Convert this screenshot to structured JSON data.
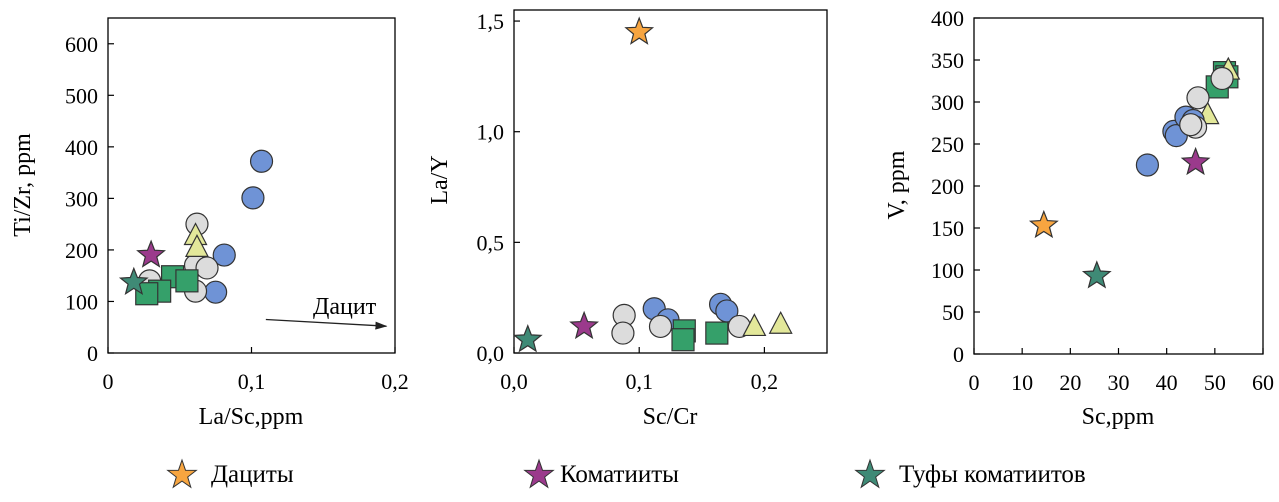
{
  "legend": {
    "dacites": "Дациты",
    "komatiites": "Коматииты",
    "komatiite_tuffs": "Туфы коматиитов"
  },
  "colors": {
    "dacite_star": "#f7a540",
    "komatiite_star": "#9b3a8c",
    "tuff_star": "#3f8a76",
    "blue_circle": "#6f93d6",
    "grey_circle": "#dcdcdc",
    "green_square": "#35a06a",
    "yellow_triangle": "#e3e89a"
  },
  "chart_data": [
    {
      "type": "scatter",
      "xlabel": "La/Sc,ppm",
      "ylabel": "Ti/Zr, ppm",
      "xlim": [
        0,
        0.2
      ],
      "ylim": [
        0,
        650
      ],
      "xticks": [
        {
          "v": 0,
          "label": "0"
        },
        {
          "v": 0.1,
          "label": "0,1"
        },
        {
          "v": 0.2,
          "label": "0,2"
        }
      ],
      "yticks": [
        {
          "v": 0,
          "label": "0"
        },
        {
          "v": 100,
          "label": "100"
        },
        {
          "v": 200,
          "label": "200"
        },
        {
          "v": 300,
          "label": "300"
        },
        {
          "v": 400,
          "label": "400"
        },
        {
          "v": 500,
          "label": "500"
        },
        {
          "v": 600,
          "label": "600"
        }
      ],
      "annotation": {
        "text": "Дацит",
        "arrow_from": [
          0.11,
          65
        ],
        "arrow_to": [
          0.194,
          52
        ]
      },
      "series": [
        {
          "marker": "circle",
          "color": "#6f93d6",
          "points": [
            [
              0.107,
              372
            ],
            [
              0.101,
              301
            ],
            [
              0.081,
              190
            ],
            [
              0.075,
              118
            ]
          ]
        },
        {
          "marker": "circle",
          "color": "#dcdcdc",
          "points": [
            [
              0.062,
              250
            ],
            [
              0.061,
              170
            ],
            [
              0.069,
              165
            ],
            [
              0.061,
              120
            ],
            [
              0.029,
              140
            ]
          ]
        },
        {
          "marker": "triangle",
          "color": "#e3e89a",
          "points": [
            [
              0.061,
              228
            ],
            [
              0.062,
              205
            ]
          ]
        },
        {
          "marker": "square",
          "color": "#35a06a",
          "points": [
            [
              0.045,
              148
            ],
            [
              0.036,
              120
            ],
            [
              0.027,
              115
            ],
            [
              0.055,
              140
            ]
          ]
        },
        {
          "marker": "star",
          "color": "#9b3a8c",
          "points": [
            [
              0.03,
              190
            ]
          ]
        },
        {
          "marker": "star",
          "color": "#3f8a76",
          "points": [
            [
              0.018,
              137
            ]
          ]
        }
      ]
    },
    {
      "type": "scatter",
      "xlabel": "Sc/Cr",
      "ylabel": "La/Y",
      "xlim": [
        0,
        0.25
      ],
      "ylim": [
        0,
        1.55
      ],
      "xticks": [
        {
          "v": 0,
          "label": "0,0"
        },
        {
          "v": 0.1,
          "label": "0,1"
        },
        {
          "v": 0.2,
          "label": "0,2"
        }
      ],
      "yticks": [
        {
          "v": 0,
          "label": "0,0"
        },
        {
          "v": 0.5,
          "label": "0,5"
        },
        {
          "v": 1.0,
          "label": "1,0"
        },
        {
          "v": 1.5,
          "label": "1,5"
        }
      ],
      "series": [
        {
          "marker": "circle",
          "color": "#6f93d6",
          "points": [
            [
              0.112,
              0.2
            ],
            [
              0.123,
              0.15
            ],
            [
              0.165,
              0.22
            ],
            [
              0.17,
              0.19
            ]
          ]
        },
        {
          "marker": "circle",
          "color": "#dcdcdc",
          "points": [
            [
              0.088,
              0.17
            ],
            [
              0.087,
              0.09
            ],
            [
              0.117,
              0.12
            ],
            [
              0.18,
              0.12
            ]
          ]
        },
        {
          "marker": "triangle",
          "color": "#e3e89a",
          "points": [
            [
              0.192,
              0.12
            ],
            [
              0.213,
              0.13
            ]
          ]
        },
        {
          "marker": "square",
          "color": "#35a06a",
          "points": [
            [
              0.136,
              0.1
            ],
            [
              0.135,
              0.06
            ],
            [
              0.162,
              0.09
            ]
          ]
        },
        {
          "marker": "star",
          "color": "#f7a540",
          "points": [
            [
              0.1,
              1.45
            ]
          ]
        },
        {
          "marker": "star",
          "color": "#9b3a8c",
          "points": [
            [
              0.056,
              0.12
            ]
          ]
        },
        {
          "marker": "star",
          "color": "#3f8a76",
          "points": [
            [
              0.011,
              0.06
            ]
          ]
        }
      ]
    },
    {
      "type": "scatter",
      "xlabel": "Sc,ppm",
      "ylabel": "V, ppm",
      "xlim": [
        0,
        60
      ],
      "ylim": [
        0,
        400
      ],
      "xticks": [
        {
          "v": 0,
          "label": "0"
        },
        {
          "v": 10,
          "label": "10"
        },
        {
          "v": 20,
          "label": "20"
        },
        {
          "v": 30,
          "label": "30"
        },
        {
          "v": 40,
          "label": "40"
        },
        {
          "v": 50,
          "label": "50"
        },
        {
          "v": 60,
          "label": "60"
        }
      ],
      "yticks": [
        {
          "v": 0,
          "label": "0"
        },
        {
          "v": 50,
          "label": "50"
        },
        {
          "v": 100,
          "label": "100"
        },
        {
          "v": 150,
          "label": "150"
        },
        {
          "v": 200,
          "label": "200"
        },
        {
          "v": 250,
          "label": "250"
        },
        {
          "v": 300,
          "label": "300"
        },
        {
          "v": 350,
          "label": "350"
        },
        {
          "v": 400,
          "label": "400"
        }
      ],
      "series": [
        {
          "marker": "square",
          "color": "#35a06a",
          "points": [
            [
              52,
              335
            ],
            [
              52.5,
              330
            ],
            [
              50.5,
              318
            ]
          ]
        },
        {
          "marker": "triangle",
          "color": "#e3e89a",
          "points": [
            [
              52.8,
              338
            ],
            [
              48.5,
              285
            ]
          ]
        },
        {
          "marker": "circle",
          "color": "#6f93d6",
          "points": [
            [
              36,
              225
            ],
            [
              41.5,
              265
            ],
            [
              42,
              260
            ],
            [
              44,
              282
            ],
            [
              45.5,
              278
            ]
          ]
        },
        {
          "marker": "circle",
          "color": "#dcdcdc",
          "points": [
            [
              46.5,
              305
            ],
            [
              51.5,
              328
            ],
            [
              46,
              270
            ],
            [
              45,
              273
            ]
          ]
        },
        {
          "marker": "star",
          "color": "#9b3a8c",
          "points": [
            [
              46,
              228
            ]
          ]
        },
        {
          "marker": "star",
          "color": "#f7a540",
          "points": [
            [
              14.5,
              153
            ]
          ]
        },
        {
          "marker": "star",
          "color": "#3f8a76",
          "points": [
            [
              25.5,
              93
            ]
          ]
        }
      ]
    }
  ]
}
